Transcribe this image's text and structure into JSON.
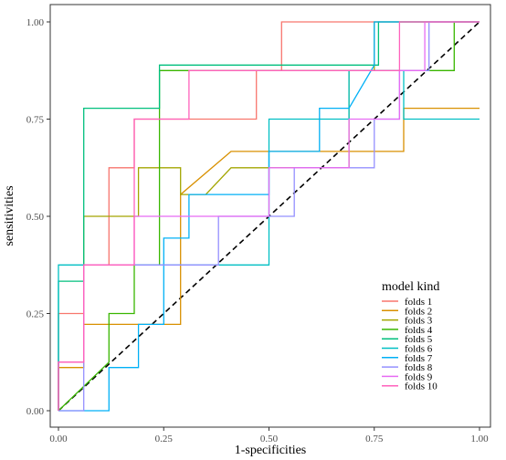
{
  "chart_data": {
    "type": "line",
    "title": "",
    "xlabel": "1-specificities",
    "ylabel": "sensitivities",
    "xlim": [
      0,
      1
    ],
    "ylim": [
      0,
      1
    ],
    "x_ticks": [
      "0.00",
      "0.25",
      "0.50",
      "0.75",
      "1.00"
    ],
    "y_ticks": [
      "0.00",
      "0.25",
      "0.50",
      "0.75",
      "1.00"
    ],
    "grid": false,
    "reference_line": {
      "from": [
        0,
        0
      ],
      "to": [
        1,
        1
      ],
      "style": "dashed",
      "color": "#000000"
    },
    "legend": {
      "title": "model kind",
      "placement": "bottom-right"
    },
    "series": [
      {
        "name": "folds 1",
        "color": "#F8766D",
        "x": [
          0,
          0,
          0.06,
          0.06,
          0.12,
          0.12,
          0.18,
          0.18,
          0.47,
          0.47,
          0.53,
          0.53,
          1.0
        ],
        "y": [
          0,
          0.25,
          0.25,
          0.375,
          0.375,
          0.625,
          0.625,
          0.75,
          0.75,
          0.875,
          0.875,
          1.0,
          1.0
        ]
      },
      {
        "name": "folds 2",
        "color": "#D89000",
        "x": [
          0,
          0,
          0.06,
          0.06,
          0.29,
          0.29,
          0.41,
          0.82,
          0.82,
          1.0
        ],
        "y": [
          0,
          0.111,
          0.111,
          0.222,
          0.222,
          0.556,
          0.667,
          0.667,
          0.778,
          0.778
        ]
      },
      {
        "name": "folds 3",
        "color": "#A3A500",
        "x": [
          0,
          0,
          0.06,
          0.06,
          0.19,
          0.19,
          0.29,
          0.29,
          0.35,
          0.41,
          0.69,
          0.69,
          0.75,
          0.75,
          1.0
        ],
        "y": [
          0,
          0.125,
          0.125,
          0.5,
          0.5,
          0.625,
          0.625,
          0.556,
          0.556,
          0.625,
          0.625,
          0.875,
          0.875,
          1.0,
          1.0
        ]
      },
      {
        "name": "folds 4",
        "color": "#39B600",
        "x": [
          0,
          0.12,
          0.12,
          0.18,
          0.18,
          0.24,
          0.24,
          0.31,
          0.31,
          0.88,
          0.88,
          0.94,
          0.94,
          1.0
        ],
        "y": [
          0,
          0.125,
          0.25,
          0.25,
          0.375,
          0.375,
          0.875,
          0.875,
          0.875,
          0.875,
          0.875,
          0.875,
          1.0,
          1.0
        ]
      },
      {
        "name": "folds 5",
        "color": "#00BF7D",
        "x": [
          0,
          0,
          0.06,
          0.06,
          0.24,
          0.24,
          0.76,
          0.76,
          1.0
        ],
        "y": [
          0,
          0.333,
          0.333,
          0.778,
          0.778,
          0.889,
          0.889,
          1.0,
          1.0
        ]
      },
      {
        "name": "folds 6",
        "color": "#00BFC4",
        "x": [
          0,
          0,
          0.06,
          0.06,
          0.5,
          0.5,
          0.62,
          0.62,
          0.69,
          0.69,
          0.82,
          0.82,
          0.94,
          0.94,
          1.0
        ],
        "y": [
          0,
          0.375,
          0.375,
          0.375,
          0.375,
          0.75,
          0.75,
          0.75,
          0.75,
          0.875,
          0.875,
          0.75,
          0.75,
          0.75,
          0.75
        ]
      },
      {
        "name": "folds 7",
        "color": "#00B0F6",
        "x": [
          0,
          0.12,
          0.12,
          0.19,
          0.19,
          0.25,
          0.25,
          0.31,
          0.31,
          0.5,
          0.5,
          0.62,
          0.62,
          0.69,
          0.75,
          0.75,
          1.0
        ],
        "y": [
          0,
          0,
          0.111,
          0.111,
          0.222,
          0.222,
          0.444,
          0.444,
          0.556,
          0.556,
          0.667,
          0.667,
          0.778,
          0.778,
          0.889,
          1.0,
          1.0
        ]
      },
      {
        "name": "folds 8",
        "color": "#9590FF",
        "x": [
          0,
          0.06,
          0.06,
          0.12,
          0.12,
          0.38,
          0.38,
          0.56,
          0.56,
          0.75,
          0.75,
          0.81,
          0.81,
          0.88,
          0.88,
          1.0
        ],
        "y": [
          0,
          0,
          0.375,
          0.375,
          0.375,
          0.375,
          0.5,
          0.5,
          0.625,
          0.625,
          0.75,
          0.75,
          0.875,
          0.875,
          1.0,
          1.0
        ]
      },
      {
        "name": "folds 9",
        "color": "#E76BF3",
        "x": [
          0,
          0,
          0.06,
          0.06,
          0.18,
          0.18,
          0.5,
          0.5,
          0.69,
          0.69,
          0.81,
          0.81,
          0.87,
          0.87,
          1.0
        ],
        "y": [
          0,
          0.125,
          0.125,
          0.375,
          0.375,
          0.5,
          0.5,
          0.625,
          0.625,
          0.75,
          0.75,
          0.875,
          0.875,
          1.0,
          1.0
        ]
      },
      {
        "name": "folds 10",
        "color": "#FF62BC",
        "x": [
          0,
          0,
          0.06,
          0.06,
          0.18,
          0.18,
          0.31,
          0.31,
          0.81,
          0.81,
          1.0
        ],
        "y": [
          0,
          0.125,
          0.125,
          0.375,
          0.375,
          0.75,
          0.75,
          0.875,
          0.875,
          1.0,
          1.0
        ]
      }
    ]
  }
}
